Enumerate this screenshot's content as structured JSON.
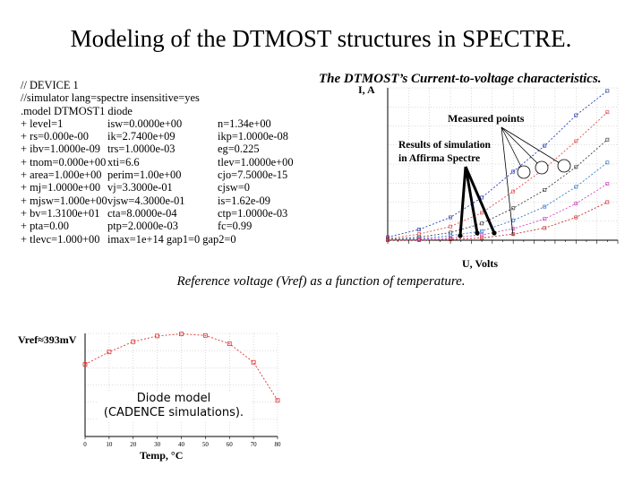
{
  "slide": {
    "title": "Modeling of the DTMOST structures in SPECTRE.",
    "iv_title": "The DTMOST’s Current-to-voltage characteristics.",
    "vref_title": "Reference voltage (Vref) as a function of temperature."
  },
  "spectre_model": {
    "lines": [
      [
        "// DEVICE 1"
      ],
      [
        "//simulator lang=spectre insensitive=yes"
      ],
      [
        ".model DTMOST1 diode"
      ],
      [
        "+ level=1",
        "isw=0.0000e+00",
        "n=1.34e+00"
      ],
      [
        "+ rs=0.000e-00",
        "ik=2.7400e+09",
        "ikp=1.0000e-08"
      ],
      [
        "+ ibv=1.0000e-09",
        "trs=1.0000e-03",
        "eg=0.225"
      ],
      [
        "+ tnom=0.000e+00",
        "xti=6.6",
        "tlev=1.0000e+00"
      ],
      [
        "+ area=1.000e+00",
        "perim=1.00e+00",
        "cjo=7.5000e-15"
      ],
      [
        "+ mj=1.0000e+00",
        "vj=3.3000e-01",
        "cjsw=0"
      ],
      [
        "+ mjsw=1.000e+00",
        "vjsw=4.3000e-01",
        "is=1.62e-09"
      ],
      [
        "+ bv=1.3100e+01",
        "cta=8.0000e-04",
        "ctp=1.0000e-03"
      ],
      [
        "+ pta=0.00",
        "ptp=2.0000e-03",
        "fc=0.99"
      ],
      [
        "+ tlevc=1.000+00",
        "imax=1e+14 gap1=0 gap2=0"
      ]
    ]
  },
  "iv_plot": {
    "ylabel": "I, A",
    "xlabel": "U, Volts",
    "measured_label": "Measured points",
    "simulation_label_line1": "Results of simulation",
    "simulation_label_line2": "in Affirma Spectre"
  },
  "vref_plot": {
    "value_label": "Vref≈393mV",
    "note_line1": "Diode model",
    "note_line2": "(CADENCE simulations).",
    "xlabel": "Temp, °C"
  },
  "colors": {
    "iv_series": [
      "#2f3fb0",
      "#e05050",
      "#404040",
      "#3a78c8",
      "#d040c0",
      "#c83030"
    ],
    "vref_line": "#e03030",
    "grid": "#b8b8b8"
  },
  "chart_data": [
    {
      "type": "line",
      "xlabel": "U, Volts",
      "ylabel": "I, A",
      "x": [
        0.0,
        0.03,
        0.06,
        0.09,
        0.12,
        0.15,
        0.18,
        0.21
      ],
      "series": [
        {
          "values": [
            0.02,
            0.07,
            0.15,
            0.28,
            0.45,
            0.62,
            0.82,
            0.98
          ]
        },
        {
          "values": [
            0.01,
            0.04,
            0.09,
            0.18,
            0.32,
            0.47,
            0.65,
            0.84
          ]
        },
        {
          "values": [
            0.005,
            0.02,
            0.05,
            0.11,
            0.21,
            0.33,
            0.48,
            0.66
          ]
        },
        {
          "values": [
            0.0,
            0.01,
            0.03,
            0.06,
            0.13,
            0.22,
            0.35,
            0.51
          ]
        },
        {
          "values": [
            0.0,
            0.005,
            0.015,
            0.035,
            0.075,
            0.14,
            0.24,
            0.37
          ]
        },
        {
          "values": [
            0.0,
            0.0,
            0.005,
            0.015,
            0.04,
            0.08,
            0.15,
            0.25
          ]
        }
      ],
      "xlim": [
        0.0,
        0.22
      ],
      "ylim": [
        0.0,
        1.0
      ],
      "grid": true
    },
    {
      "type": "line",
      "xlabel": "Temp, °C",
      "x": [
        0,
        10,
        20,
        30,
        40,
        50,
        60,
        70,
        80
      ],
      "xticks": [
        0,
        10,
        20,
        30,
        40,
        50,
        60,
        70,
        80
      ],
      "series": [
        {
          "values": [
            0.7,
            0.82,
            0.92,
            0.975,
            0.995,
            0.98,
            0.9,
            0.72,
            0.35
          ]
        }
      ],
      "xlim": [
        0,
        80
      ],
      "ylim": [
        0,
        1
      ],
      "grid": true
    }
  ]
}
